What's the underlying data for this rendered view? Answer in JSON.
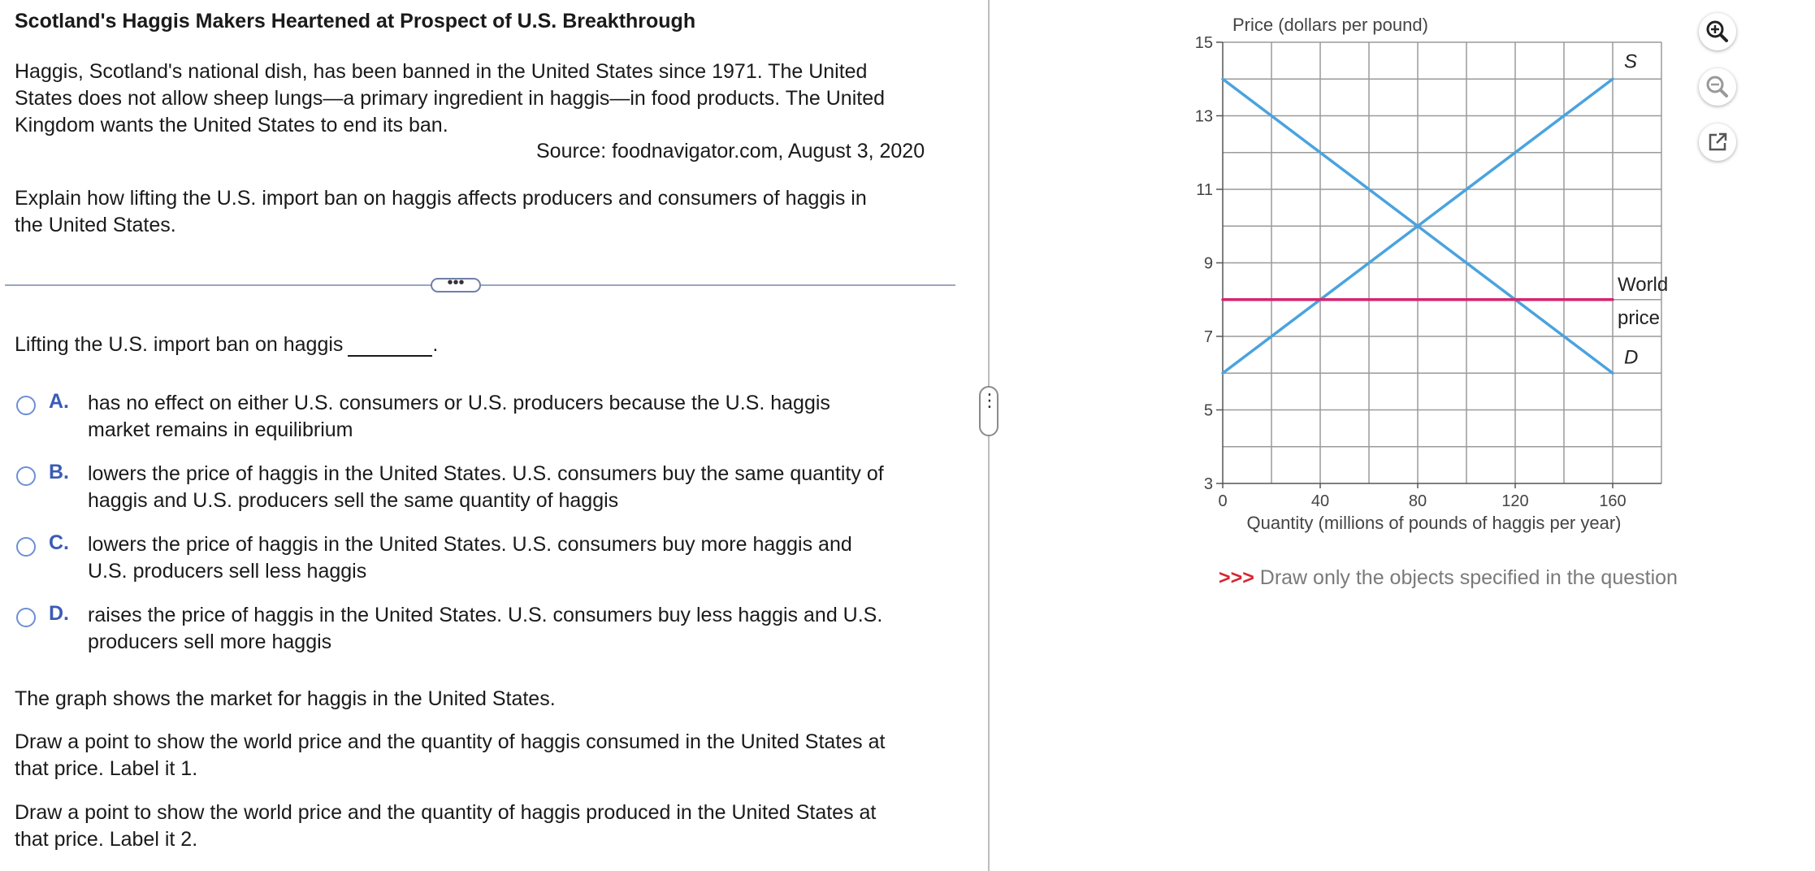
{
  "question": {
    "title": "Scotland's Haggis Makers Heartened at Prospect of U.S. Breakthrough",
    "paragraph_lines": [
      "Haggis, Scotland's national dish, has been banned in the United States since 1971. The United",
      "States does not allow sheep lungs—a primary ingredient in haggis—in food products. The United",
      "Kingdom wants the United States to end its ban."
    ],
    "source": "Source: foodnavigator.com, August 3, 2020",
    "prompt_lines": [
      "Explain how lifting the U.S. import ban on haggis affects producers and consumers of haggis in",
      "the United States."
    ],
    "more_label": "•••",
    "stem": "Lifting the U.S. import ban on haggis",
    "stem_end": ".",
    "options": [
      {
        "letter": "A.",
        "lines": [
          "has no effect on either U.S. consumers or U.S. producers because the U.S. haggis",
          "market remains in equilibrium"
        ]
      },
      {
        "letter": "B.",
        "lines": [
          "lowers the price of haggis in the United States. U.S. consumers buy the same quantity of",
          "haggis and U.S. producers sell the same quantity of haggis"
        ]
      },
      {
        "letter": "C.",
        "lines": [
          "lowers the price of haggis in the United States. U.S. consumers buy more haggis and",
          "U.S. producers sell less haggis"
        ]
      },
      {
        "letter": "D.",
        "lines": [
          "raises the price of haggis in the United States. U.S. consumers buy less haggis and U.S.",
          "producers sell more haggis"
        ]
      }
    ],
    "graph_intro": "The graph shows the market for haggis in  the United States.",
    "instruction1_lines": [
      "Draw a point to show the world price and the quantity of haggis consumed in the United States at",
      "that price. Label it 1."
    ],
    "instruction2_lines": [
      "Draw a point to show the world price and the quantity of haggis produced in the United States at",
      "that price. Label it 2."
    ]
  },
  "graph_note": {
    "arrows": ">>>",
    "text": " Draw only the objects specified in the question"
  },
  "tools": [
    "zoom-in-icon",
    "zoom-out-icon",
    "pop-out-icon"
  ],
  "colors": {
    "curve": "#4aa3df",
    "world_price": "#d6246f",
    "grid": "#9a9a9a",
    "radio": "#6d8fd6",
    "letter": "#3b5bb5"
  },
  "chart_data": {
    "type": "line",
    "ylabel": "Price (dollars per pound)",
    "xlabel": "Quantity (millions of pounds of haggis per year)",
    "xlim": [
      0,
      180
    ],
    "ylim": [
      3,
      15
    ],
    "x_ticks": [
      40,
      80,
      120,
      160
    ],
    "x_origin_label": "0",
    "y_ticks": [
      3,
      5,
      7,
      9,
      11,
      13,
      15
    ],
    "series": [
      {
        "name": "S",
        "points": [
          [
            0,
            6
          ],
          [
            160,
            14
          ]
        ]
      },
      {
        "name": "D",
        "points": [
          [
            0,
            14
          ],
          [
            160,
            6
          ]
        ]
      },
      {
        "name": "World price",
        "label_lines": [
          "World",
          "price"
        ],
        "points": [
          [
            0,
            8
          ],
          [
            160,
            8
          ]
        ]
      }
    ]
  }
}
